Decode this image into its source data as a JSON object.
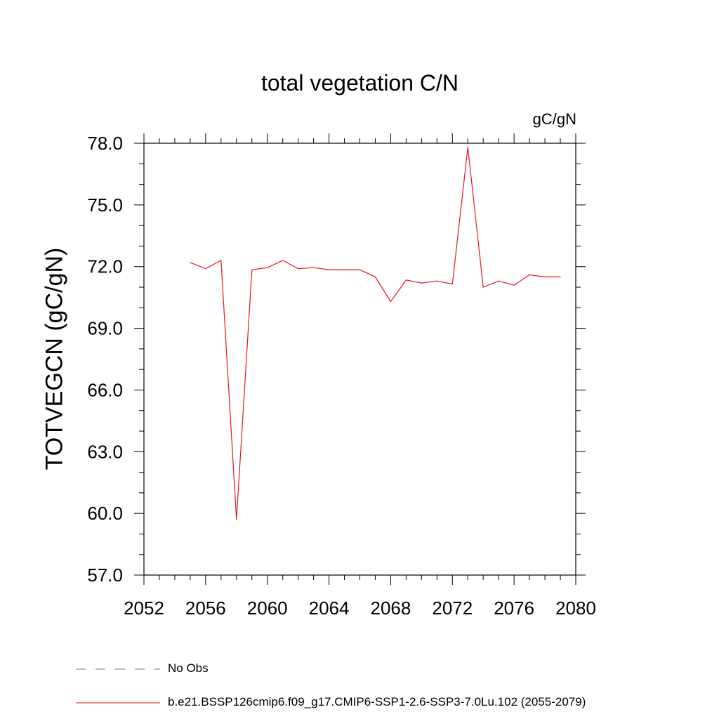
{
  "chart_data": {
    "type": "line",
    "title": "total vegetation C/N",
    "units_label": "gC/gN",
    "ylabel": "TOTVEGCN  (gC/gN)",
    "xlim": [
      2052,
      2080
    ],
    "ylim": [
      57.0,
      78.0
    ],
    "x_ticks": [
      "2052",
      "2056",
      "2060",
      "2064",
      "2068",
      "2072",
      "2076",
      "2080"
    ],
    "y_ticks": [
      "57.0",
      "60.0",
      "63.0",
      "66.0",
      "69.0",
      "72.0",
      "75.0",
      "78.0"
    ],
    "grid": false,
    "legend_position": "bottom-left",
    "series": [
      {
        "name": "b.e21.BSSP126cmip6.f09_g17.CMIP6-SSP1-2.6-SSP3-7.0Lu.102 (2055-2079)",
        "color": "#e8141c",
        "style": "solid",
        "x": [
          2055,
          2056,
          2057,
          2058,
          2059,
          2060,
          2061,
          2062,
          2063,
          2064,
          2065,
          2066,
          2067,
          2068,
          2069,
          2070,
          2071,
          2072,
          2073,
          2074,
          2075,
          2076,
          2077,
          2078,
          2079
        ],
        "y": [
          72.2,
          71.9,
          72.3,
          59.7,
          71.85,
          71.95,
          72.3,
          71.9,
          71.95,
          71.85,
          71.85,
          71.85,
          71.5,
          70.3,
          71.35,
          71.2,
          71.3,
          71.15,
          77.8,
          71.0,
          71.3,
          71.1,
          71.6,
          71.5,
          71.5
        ]
      }
    ],
    "legend": [
      {
        "label": "No Obs",
        "color": "#7b6fb0",
        "style": "dashed"
      },
      {
        "label": "b.e21.BSSP126cmip6.f09_g17.CMIP6-SSP1-2.6-SSP3-7.0Lu.102 (2055-2079)",
        "color": "#e8141c",
        "style": "solid"
      }
    ]
  }
}
